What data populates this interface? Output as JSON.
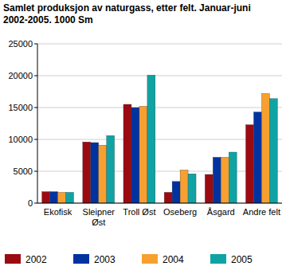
{
  "chart_data": {
    "type": "bar",
    "title": "Samlet produksjon av naturgass, etter felt. Januar-juni 2002-2005. 1000 Sm",
    "categories": [
      "Ekofisk",
      "Sleipner Øst",
      "Troll Øst",
      "Oseberg",
      "Åsgard",
      "Andre felt"
    ],
    "series": [
      {
        "name": "2002",
        "color": "#9b0a11",
        "values": [
          1800,
          9600,
          15500,
          1700,
          4500,
          12300
        ]
      },
      {
        "name": "2003",
        "color": "#0033a0",
        "values": [
          1800,
          9500,
          15000,
          3400,
          7200,
          14300
        ]
      },
      {
        "name": "2004",
        "color": "#f7a030",
        "values": [
          1700,
          9100,
          15200,
          5200,
          7200,
          17200
        ]
      },
      {
        "name": "2005",
        "color": "#10a3a3",
        "values": [
          1700,
          10600,
          20100,
          4600,
          8000,
          16400
        ]
      }
    ],
    "ylim": [
      0,
      25000
    ],
    "yticks": [
      0,
      5000,
      10000,
      15000,
      20000,
      25000
    ],
    "grid": true,
    "legend": "bottom"
  }
}
